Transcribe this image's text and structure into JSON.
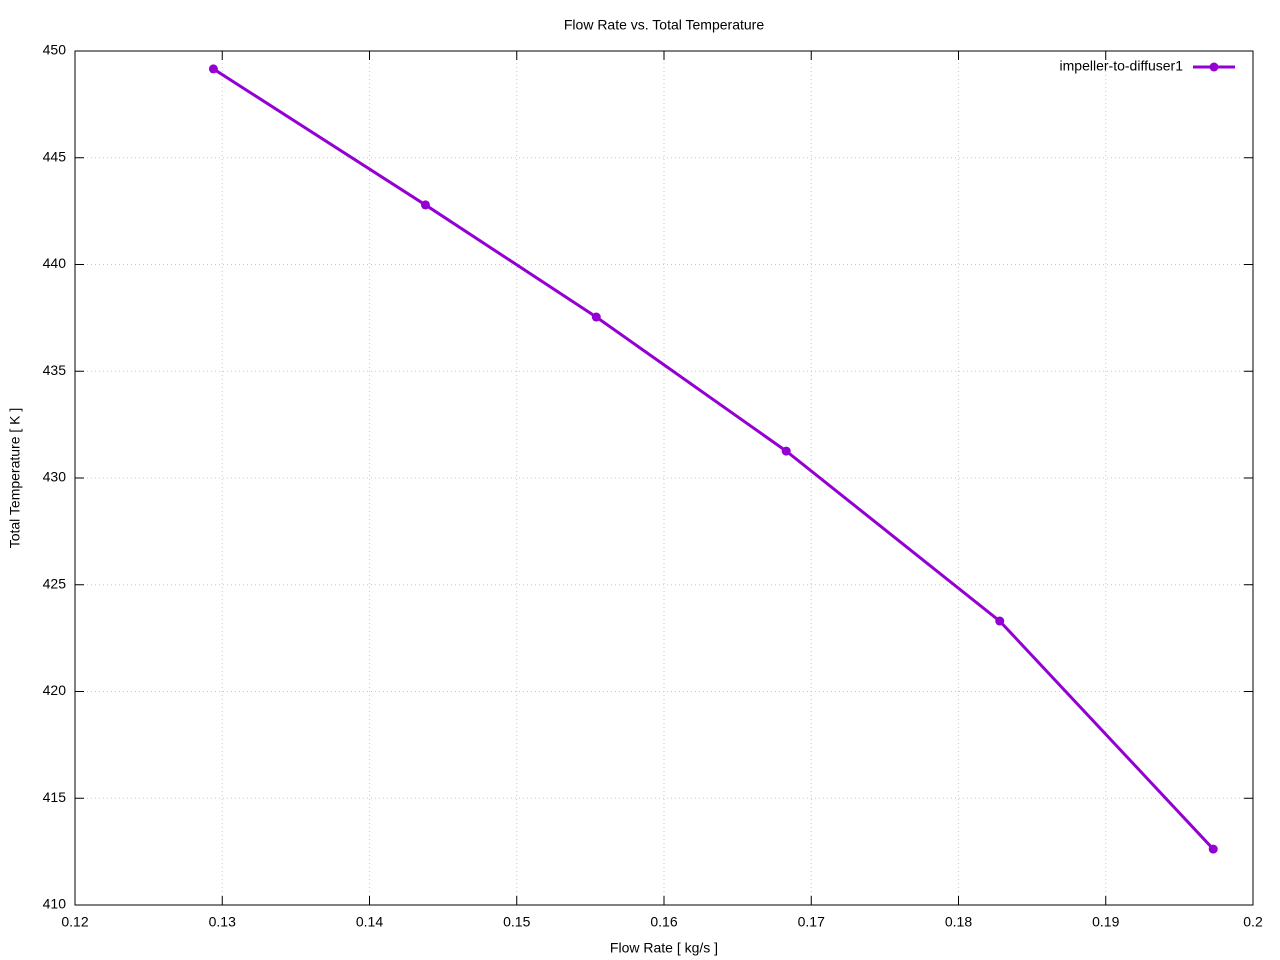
{
  "chart_data": {
    "type": "line",
    "title": "Flow Rate vs. Total Temperature",
    "xlabel": "Flow Rate [ kg/s ]",
    "ylabel": "Total Temperature [ K ]",
    "x": [
      0.1294,
      0.1438,
      0.1554,
      0.1683,
      0.1828,
      0.1973
    ],
    "series": [
      {
        "name": "impeller-to-diffuser1",
        "color": "#9400d3",
        "values": [
          449.16,
          442.79,
          437.54,
          431.26,
          423.3,
          412.62
        ]
      }
    ],
    "xlim": [
      0.12,
      0.2
    ],
    "xticks": [
      0.12,
      0.13,
      0.14,
      0.15,
      0.16,
      0.17,
      0.18,
      0.19,
      0.2
    ],
    "ylim": [
      410,
      450
    ],
    "yticks": [
      410,
      415,
      420,
      425,
      430,
      435,
      440,
      445,
      450
    ],
    "grid": true,
    "legend": "top-right"
  }
}
